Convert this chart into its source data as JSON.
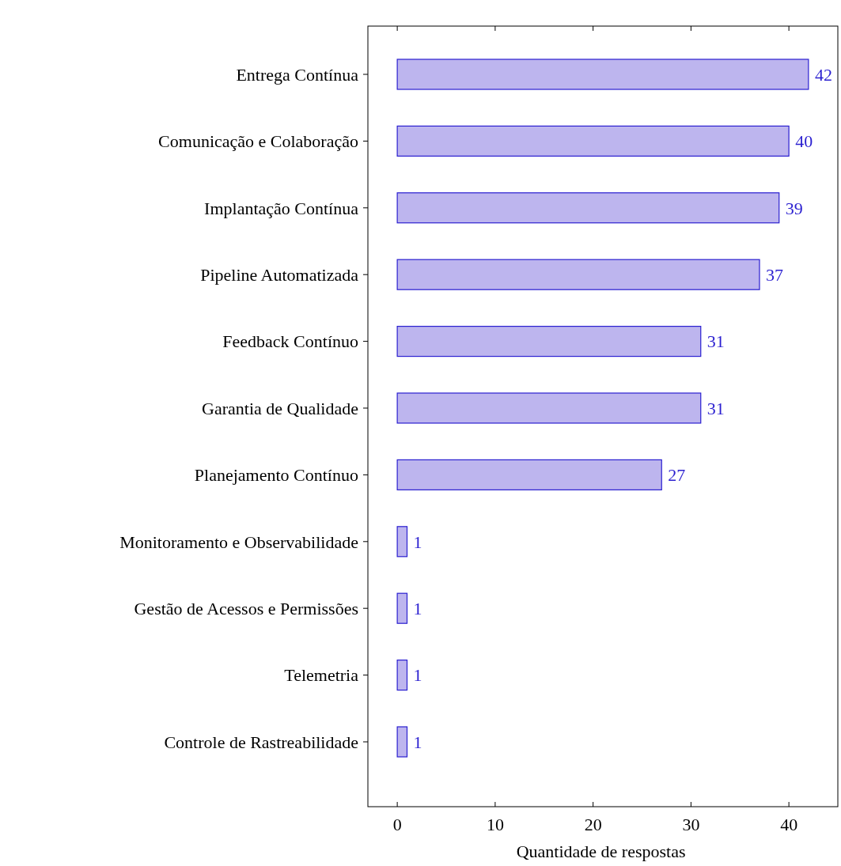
{
  "chart_data": {
    "type": "bar",
    "orientation": "horizontal",
    "xlabel": "Quantidade de respostas",
    "categories": [
      "Entrega Contínua",
      "Comunicação e Colaboração",
      "Implantação Contínua",
      "Pipeline Automatizada",
      "Feedback Contínuo",
      "Garantia de Qualidade",
      "Planejamento Contínuo",
      "Monitoramento e Observabilidade",
      "Gestão de Acessos e Permissões",
      "Telemetria",
      "Controle de Rastreabilidade"
    ],
    "values": [
      42,
      40,
      39,
      37,
      31,
      31,
      27,
      1,
      1,
      1,
      1
    ],
    "color": "#bdb5ee",
    "data_labels": true,
    "xlim": [
      -3,
      45
    ],
    "xticks": [
      0,
      10,
      20,
      30,
      40
    ],
    "grid": false
  }
}
